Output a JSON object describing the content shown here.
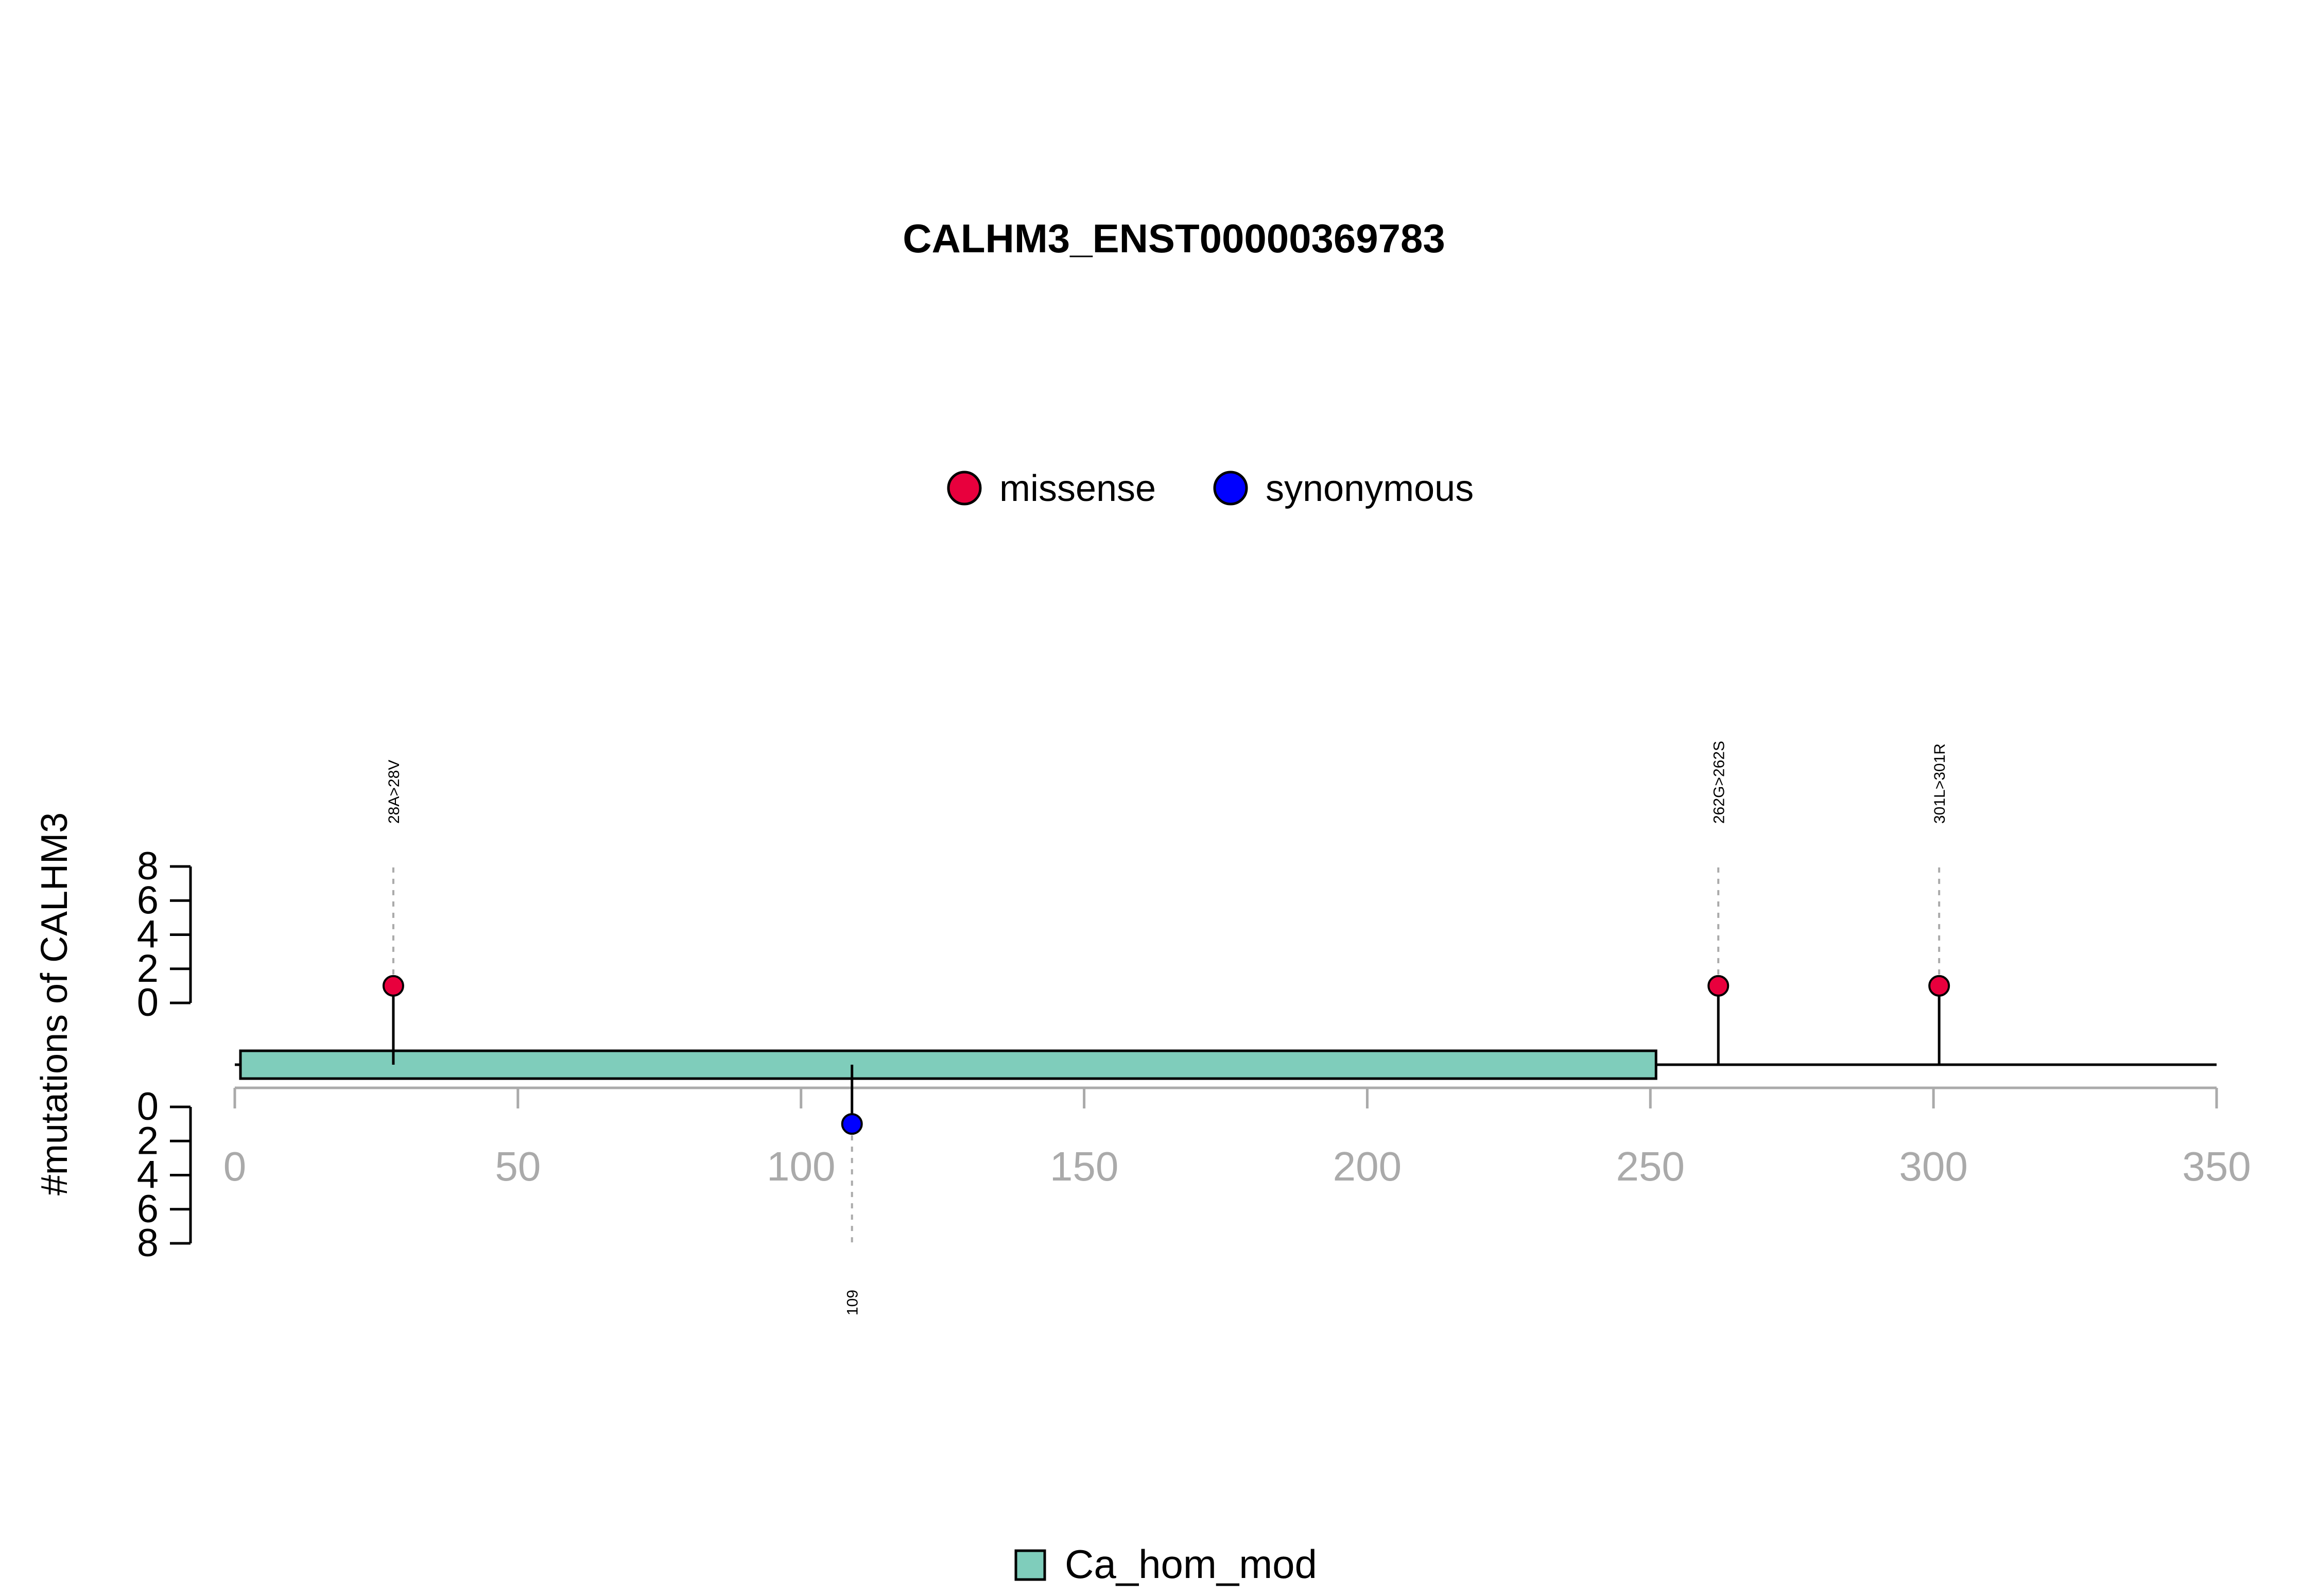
{
  "chart_data": {
    "type": "lollipop",
    "title": "CALHM3_ENST00000369783",
    "ylabel": "#mutations of CALHM3",
    "xlim": [
      0,
      350
    ],
    "x_ticks": [
      0,
      50,
      100,
      150,
      200,
      250,
      300,
      350
    ],
    "y_ticks_upper": [
      0,
      2,
      4,
      6,
      8
    ],
    "y_ticks_lower": [
      0,
      2,
      4,
      6,
      8
    ],
    "ylim": [
      0,
      8
    ],
    "legend_top": [
      {
        "label": "missense",
        "color": "#E8003D"
      },
      {
        "label": "synonymous",
        "color": "#0000FF"
      }
    ],
    "domains": [
      {
        "name": "Ca_hom_mod",
        "start": 1,
        "end": 251,
        "color": "#7FCDBB"
      }
    ],
    "legend_bottom": [
      {
        "label": "Ca_hom_mod",
        "color": "#7FCDBB"
      }
    ],
    "mutations": [
      {
        "position": 28,
        "count": 1,
        "label": "28A>28V",
        "type": "missense",
        "side": "top",
        "color": "#E8003D"
      },
      {
        "position": 262,
        "count": 1,
        "label": "262G>262S",
        "type": "missense",
        "side": "top",
        "color": "#E8003D"
      },
      {
        "position": 301,
        "count": 1,
        "label": "301L>301R",
        "type": "missense",
        "side": "top",
        "color": "#E8003D"
      },
      {
        "position": 109,
        "count": 1,
        "label": "109",
        "type": "synonymous",
        "side": "bottom",
        "color": "#0000FF"
      }
    ]
  }
}
